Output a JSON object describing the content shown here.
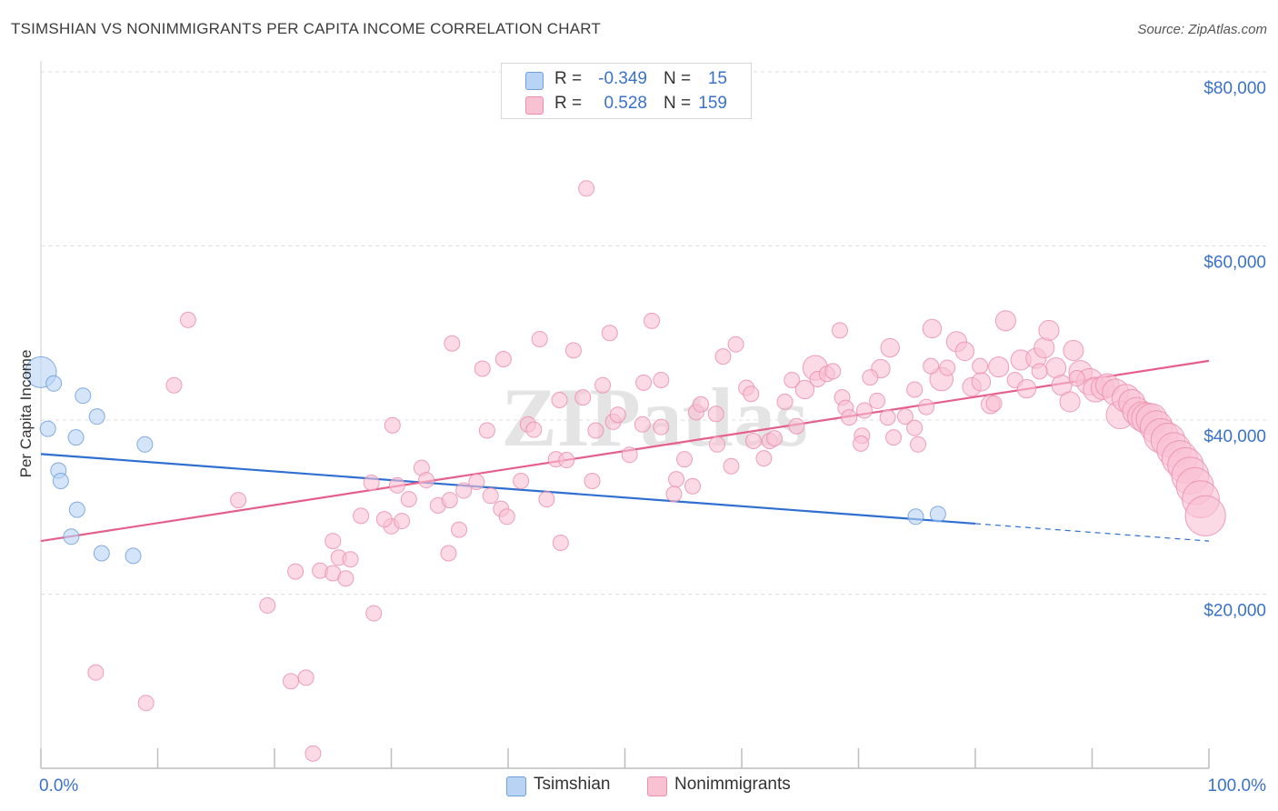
{
  "title": "TSIMSHIAN VS NONIMMIGRANTS PER CAPITA INCOME CORRELATION CHART",
  "source": "Source: ZipAtlas.com",
  "watermark": "ZIPatlas",
  "legend": {
    "rows": [
      {
        "r_label": "R =",
        "r_value": "-0.349",
        "n_label": "N =",
        "n_value": "15"
      },
      {
        "r_label": "R =",
        "r_value": "0.528",
        "n_label": "N =",
        "n_value": "159"
      }
    ]
  },
  "bottom_legend": [
    "Tsimshian",
    "Nonimmigrants"
  ],
  "colors": {
    "blue_fill": "#b9d3f5",
    "blue_stroke": "#6f9fdc",
    "blue_line": "#2f6fd1",
    "pink_fill": "#f9c2d3",
    "pink_stroke": "#ec8fac",
    "pink_line": "#e45f8d",
    "axis_label": "#3a72c9",
    "grid": "#dedede"
  },
  "chart_data": {
    "type": "scatter",
    "title": "TSIMSHIAN VS NONIMMIGRANTS PER CAPITA INCOME CORRELATION CHART",
    "xlabel": "",
    "ylabel": "Per Capita Income",
    "xlim": [
      0,
      100
    ],
    "ylim": [
      0,
      80000
    ],
    "x_tick_labels": [
      "0.0%",
      "100.0%"
    ],
    "y_ticks": [
      20000,
      40000,
      60000,
      80000
    ],
    "y_tick_labels": [
      "$20,000",
      "$40,000",
      "$60,000",
      "$80,000"
    ],
    "grid": true,
    "legend_position": "top-center",
    "series": [
      {
        "name": "Tsimshian",
        "color": "#b9d3f5",
        "points": [
          [
            0.0,
            45500,
            2.0
          ],
          [
            1.1,
            44200,
            1.0
          ],
          [
            0.6,
            39000,
            1.0
          ],
          [
            3.6,
            42800,
            1.0
          ],
          [
            4.8,
            40400,
            1.0
          ],
          [
            3.0,
            38000,
            1.0
          ],
          [
            8.9,
            37200,
            1.0
          ],
          [
            1.5,
            34200,
            1.0
          ],
          [
            1.7,
            33000,
            1.0
          ],
          [
            3.1,
            29700,
            1.0
          ],
          [
            2.6,
            26600,
            1.0
          ],
          [
            5.2,
            24700,
            1.0
          ],
          [
            7.9,
            24400,
            1.0
          ],
          [
            74.9,
            28900,
            1.0
          ],
          [
            76.8,
            29200,
            1.0
          ]
        ],
        "trend": {
          "x": [
            0,
            80
          ],
          "y": [
            36100,
            28100
          ],
          "dashed_to": [
            100,
            26100
          ]
        }
      },
      {
        "name": "Nonimmigrants",
        "color": "#f9c2d3",
        "points": [
          [
            12.6,
            51500,
            1.0
          ],
          [
            11.4,
            44000,
            1.0
          ],
          [
            4.7,
            11000,
            1.0
          ],
          [
            9.0,
            7500,
            1.0
          ],
          [
            16.9,
            30800,
            1.0
          ],
          [
            19.4,
            18700,
            1.0
          ],
          [
            21.4,
            10000,
            1.0
          ],
          [
            22.7,
            10400,
            1.0
          ],
          [
            23.3,
            1700,
            1.0
          ],
          [
            21.8,
            22600,
            1.0
          ],
          [
            23.9,
            22700,
            1.0
          ],
          [
            25.0,
            22400,
            1.0
          ],
          [
            26.1,
            21800,
            1.0
          ],
          [
            25.5,
            24200,
            1.0
          ],
          [
            26.5,
            24000,
            1.0
          ],
          [
            25.0,
            26100,
            1.0
          ],
          [
            27.4,
            29000,
            1.0
          ],
          [
            28.5,
            17800,
            1.0
          ],
          [
            28.3,
            32800,
            1.0
          ],
          [
            30.0,
            27800,
            1.0
          ],
          [
            29.4,
            28600,
            1.0
          ],
          [
            30.5,
            32500,
            1.0
          ],
          [
            30.9,
            28400,
            1.0
          ],
          [
            31.5,
            30900,
            1.0
          ],
          [
            30.1,
            39400,
            1.0
          ],
          [
            32.6,
            34500,
            1.0
          ],
          [
            33.0,
            33100,
            1.0
          ],
          [
            34.0,
            30200,
            1.0
          ],
          [
            35.0,
            30800,
            1.0
          ],
          [
            35.2,
            48800,
            1.0
          ],
          [
            35.8,
            27400,
            1.0
          ],
          [
            34.9,
            24700,
            1.0
          ],
          [
            36.2,
            31900,
            1.0
          ],
          [
            37.3,
            32900,
            1.0
          ],
          [
            37.8,
            45900,
            1.0
          ],
          [
            38.2,
            38800,
            1.0
          ],
          [
            38.5,
            31300,
            1.0
          ],
          [
            39.4,
            29800,
            1.0
          ],
          [
            39.6,
            47000,
            1.0
          ],
          [
            39.9,
            28900,
            1.0
          ],
          [
            41.1,
            33000,
            1.0
          ],
          [
            41.7,
            39500,
            1.0
          ],
          [
            42.2,
            38900,
            1.0
          ],
          [
            42.7,
            49300,
            1.0
          ],
          [
            43.3,
            30900,
            1.0
          ],
          [
            44.1,
            35500,
            1.0
          ],
          [
            44.5,
            25900,
            1.0
          ],
          [
            44.4,
            42300,
            1.0
          ],
          [
            45.0,
            35400,
            1.0
          ],
          [
            45.6,
            48000,
            1.0
          ],
          [
            46.4,
            42600,
            1.0
          ],
          [
            46.7,
            66600,
            1.0
          ],
          [
            47.2,
            33000,
            1.0
          ],
          [
            47.5,
            38800,
            1.0
          ],
          [
            48.1,
            44000,
            1.0
          ],
          [
            49.0,
            39800,
            1.0
          ],
          [
            48.7,
            50000,
            1.0
          ],
          [
            49.4,
            40600,
            1.0
          ],
          [
            50.4,
            36000,
            1.0
          ],
          [
            51.5,
            39500,
            1.0
          ],
          [
            51.6,
            44300,
            1.0
          ],
          [
            52.3,
            51400,
            1.0
          ],
          [
            53.1,
            44600,
            1.0
          ],
          [
            53.1,
            39200,
            1.0
          ],
          [
            54.2,
            31500,
            1.0
          ],
          [
            54.4,
            33200,
            1.0
          ],
          [
            55.1,
            35500,
            1.0
          ],
          [
            55.8,
            32400,
            1.0
          ],
          [
            56.1,
            40900,
            1.0
          ],
          [
            56.5,
            41800,
            1.0
          ],
          [
            57.8,
            40700,
            1.0
          ],
          [
            57.9,
            37200,
            1.0
          ],
          [
            58.4,
            47300,
            1.0
          ],
          [
            59.1,
            34700,
            1.0
          ],
          [
            59.5,
            48700,
            1.0
          ],
          [
            60.4,
            43700,
            1.0
          ],
          [
            60.8,
            43000,
            1.0
          ],
          [
            61.0,
            37600,
            1.0
          ],
          [
            61.9,
            35600,
            1.0
          ],
          [
            62.4,
            37600,
            1.0
          ],
          [
            62.8,
            37900,
            1.0
          ],
          [
            63.7,
            42100,
            1.0
          ],
          [
            64.3,
            44600,
            1.0
          ],
          [
            64.7,
            39300,
            1.0
          ],
          [
            66.3,
            46000,
            1.6
          ],
          [
            65.4,
            43500,
            1.2
          ],
          [
            66.5,
            44700,
            1.0
          ],
          [
            67.3,
            45300,
            1.0
          ],
          [
            68.4,
            50300,
            1.0
          ],
          [
            68.6,
            42600,
            1.0
          ],
          [
            68.9,
            41400,
            1.0
          ],
          [
            69.2,
            40300,
            1.0
          ],
          [
            70.3,
            38200,
            1.0
          ],
          [
            70.5,
            41100,
            1.0
          ],
          [
            70.2,
            37300,
            1.0
          ],
          [
            71.6,
            42200,
            1.0
          ],
          [
            72.5,
            40300,
            1.0
          ],
          [
            73.0,
            38000,
            1.0
          ],
          [
            74.0,
            40400,
            1.0
          ],
          [
            74.8,
            39100,
            1.0
          ],
          [
            75.1,
            37200,
            1.0
          ],
          [
            72.7,
            48300,
            1.2
          ],
          [
            71.9,
            45900,
            1.2
          ],
          [
            74.8,
            43500,
            1.0
          ],
          [
            75.8,
            41500,
            1.0
          ],
          [
            76.3,
            50500,
            1.2
          ],
          [
            77.1,
            44700,
            1.5
          ],
          [
            77.6,
            46000,
            1.0
          ],
          [
            78.4,
            49000,
            1.3
          ],
          [
            79.1,
            47900,
            1.2
          ],
          [
            79.7,
            43800,
            1.2
          ],
          [
            80.5,
            44400,
            1.2
          ],
          [
            81.3,
            41800,
            1.2
          ],
          [
            82.0,
            46100,
            1.3
          ],
          [
            82.6,
            51400,
            1.3
          ],
          [
            83.4,
            44600,
            1.0
          ],
          [
            83.9,
            46900,
            1.3
          ],
          [
            84.4,
            43600,
            1.2
          ],
          [
            85.2,
            47100,
            1.3
          ],
          [
            85.9,
            48300,
            1.3
          ],
          [
            86.3,
            50300,
            1.3
          ],
          [
            86.9,
            46000,
            1.3
          ],
          [
            87.4,
            44000,
            1.3
          ],
          [
            88.1,
            42100,
            1.3
          ],
          [
            88.4,
            48000,
            1.3
          ],
          [
            89.0,
            45500,
            1.5
          ],
          [
            89.8,
            44400,
            1.7
          ],
          [
            90.3,
            43500,
            1.6
          ],
          [
            90.9,
            43700,
            1.5
          ],
          [
            91.3,
            44000,
            1.5
          ],
          [
            92.0,
            43200,
            1.7
          ],
          [
            92.4,
            40600,
            1.8
          ],
          [
            92.9,
            42500,
            1.8
          ],
          [
            93.4,
            42000,
            1.7
          ],
          [
            93.8,
            41000,
            1.8
          ],
          [
            94.3,
            40400,
            1.9
          ],
          [
            94.7,
            40200,
            2.0
          ],
          [
            95.1,
            40100,
            2.0
          ],
          [
            95.5,
            39200,
            2.1
          ],
          [
            95.9,
            38200,
            2.2
          ],
          [
            96.5,
            37700,
            2.2
          ],
          [
            97.0,
            36600,
            2.2
          ],
          [
            97.5,
            35600,
            2.3
          ],
          [
            98.0,
            34800,
            2.3
          ],
          [
            98.4,
            33600,
            2.4
          ],
          [
            98.8,
            32400,
            2.4
          ],
          [
            99.3,
            30900,
            2.4
          ],
          [
            99.7,
            29000,
            2.6
          ],
          [
            81.6,
            41900,
            1.0
          ],
          [
            67.8,
            45600,
            1.0
          ],
          [
            76.2,
            46200,
            1.0
          ],
          [
            71.0,
            44900,
            1.0
          ],
          [
            85.5,
            45600,
            1.0
          ],
          [
            80.4,
            46200,
            1.0
          ],
          [
            88.7,
            44800,
            1.0
          ]
        ],
        "trend": {
          "x": [
            0,
            100
          ],
          "y": [
            26100,
            46800
          ]
        }
      }
    ]
  }
}
